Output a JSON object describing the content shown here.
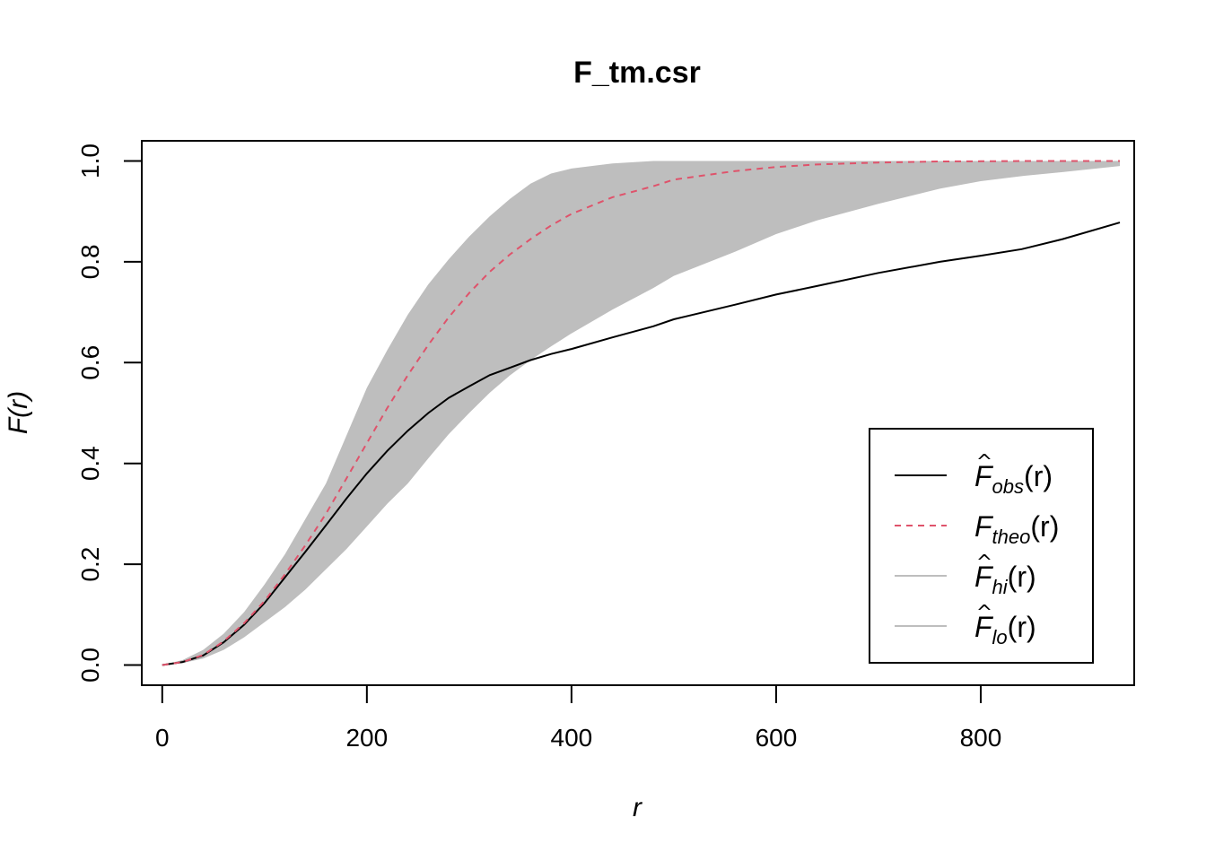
{
  "chart_data": {
    "type": "line",
    "title": "F_tm.csr",
    "xlabel": "r",
    "ylabel": "F(r)",
    "xlim": [
      -20,
      950
    ],
    "ylim": [
      -0.04,
      1.04
    ],
    "x_ticks": [
      "0",
      "200",
      "400",
      "600",
      "800"
    ],
    "y_ticks": [
      "0.0",
      "0.2",
      "0.4",
      "0.6",
      "0.8",
      "1.0"
    ],
    "x_tick_values": [
      0,
      200,
      400,
      600,
      800
    ],
    "y_tick_values": [
      0,
      0.2,
      0.4,
      0.6,
      0.8,
      1.0
    ],
    "grid": false,
    "legend_position": "bottom-right",
    "x": [
      0,
      20,
      40,
      60,
      80,
      100,
      120,
      140,
      160,
      180,
      200,
      220,
      240,
      260,
      280,
      300,
      320,
      340,
      360,
      380,
      400,
      440,
      480,
      500,
      560,
      600,
      640,
      700,
      760,
      800,
      840,
      880,
      936
    ],
    "series": [
      {
        "name": "F_obs(r)",
        "legend": {
          "base": "F",
          "hat": true,
          "sub": "obs",
          "arg": "(r)"
        },
        "color": "#000000",
        "dash": "solid",
        "values": [
          0.0,
          0.006,
          0.019,
          0.045,
          0.08,
          0.123,
          0.174,
          0.225,
          0.277,
          0.33,
          0.38,
          0.425,
          0.465,
          0.5,
          0.53,
          0.553,
          0.575,
          0.59,
          0.605,
          0.617,
          0.627,
          0.65,
          0.672,
          0.686,
          0.715,
          0.735,
          0.752,
          0.778,
          0.8,
          0.812,
          0.825,
          0.845,
          0.878
        ]
      },
      {
        "name": "F_theo(r)",
        "legend": {
          "base": "F",
          "hat": false,
          "sub": "theo",
          "arg": "(r)"
        },
        "color": "#DF536B",
        "dash": "dashed",
        "values": [
          0.0,
          0.006,
          0.02,
          0.047,
          0.083,
          0.127,
          0.18,
          0.238,
          0.3,
          0.37,
          0.44,
          0.51,
          0.575,
          0.635,
          0.69,
          0.738,
          0.78,
          0.815,
          0.845,
          0.872,
          0.895,
          0.928,
          0.95,
          0.963,
          0.98,
          0.988,
          0.993,
          0.997,
          0.999,
          0.9995,
          1.0,
          1.0,
          1.0
        ]
      },
      {
        "name": "F_hi(r)",
        "legend": {
          "base": "F",
          "hat": true,
          "sub": "hi",
          "arg": "(r)"
        },
        "color": "#BEBEBE",
        "dash": "solid",
        "values": [
          0.0,
          0.01,
          0.03,
          0.062,
          0.105,
          0.16,
          0.22,
          0.29,
          0.36,
          0.455,
          0.55,
          0.625,
          0.695,
          0.755,
          0.805,
          0.85,
          0.89,
          0.925,
          0.955,
          0.975,
          0.985,
          0.995,
          1.0,
          1.0,
          1.0,
          1.0,
          1.0,
          1.0,
          1.0,
          1.0,
          1.0,
          1.0,
          1.0
        ]
      },
      {
        "name": "F_lo(r)",
        "legend": {
          "base": "F",
          "hat": true,
          "sub": "lo",
          "arg": "(r)"
        },
        "color": "#BEBEBE",
        "dash": "solid",
        "values": [
          0.0,
          0.004,
          0.013,
          0.03,
          0.055,
          0.085,
          0.115,
          0.15,
          0.19,
          0.23,
          0.275,
          0.32,
          0.36,
          0.41,
          0.458,
          0.5,
          0.54,
          0.575,
          0.605,
          0.632,
          0.658,
          0.705,
          0.748,
          0.772,
          0.82,
          0.855,
          0.882,
          0.915,
          0.945,
          0.96,
          0.97,
          0.978,
          0.99
        ]
      }
    ],
    "band": {
      "upper": "F_hi(r)",
      "lower": "F_lo(r)",
      "fill": "#BEBEBE"
    }
  }
}
